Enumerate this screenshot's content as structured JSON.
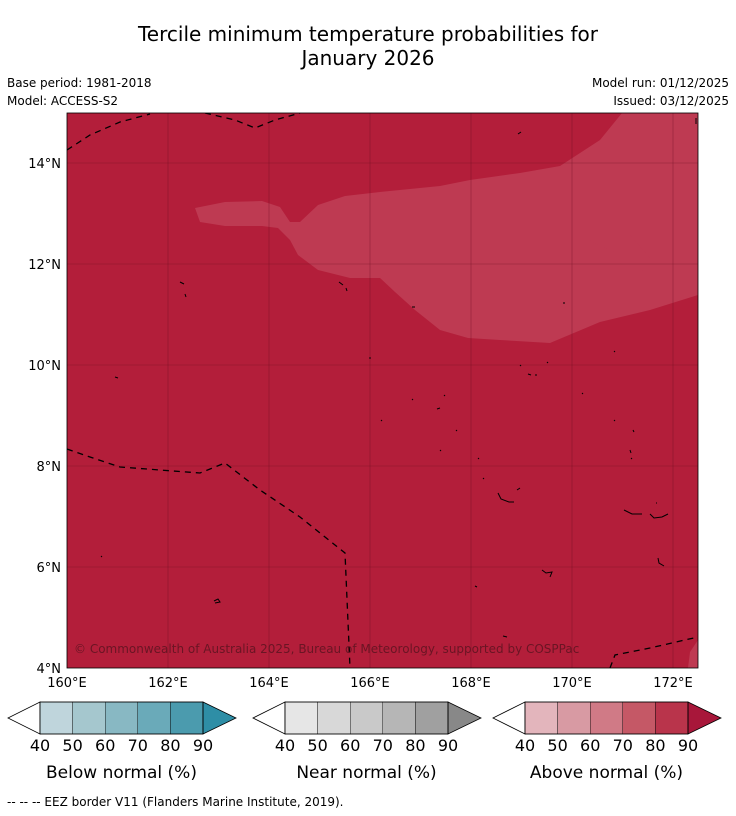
{
  "title_line1": "Tercile minimum temperature probabilities for",
  "title_line2": "January 2026",
  "base_period": "Base period: 1981-2018",
  "model": "Model: ACCESS-S2",
  "model_run": "Model run: 01/12/2025",
  "issued": "Issued: 03/12/2025",
  "map": {
    "lat_labels": [
      "14°N",
      "12°N",
      "10°N",
      "8°N",
      "6°N",
      "4°N"
    ],
    "lon_labels": [
      "160°E",
      "162°E",
      "164°E",
      "166°E",
      "168°E",
      "170°E",
      "172°E"
    ],
    "copyright": "© Commonwealth of Australia 2025, Bureau of Meteorology, supported by COSPPac",
    "colors": {
      "above_80": "#b31e3a",
      "above_90": "#be3a52"
    }
  },
  "colorbars": [
    {
      "label": "Below normal (%)",
      "ticks": [
        "40",
        "50",
        "60",
        "70",
        "80",
        "90"
      ],
      "colors": [
        "#bfd5dc",
        "#a5c7ce",
        "#88b8c3",
        "#6aaab9",
        "#4b9bae",
        "#2e8ea6"
      ]
    },
    {
      "label": "Near normal (%)",
      "ticks": [
        "40",
        "50",
        "60",
        "70",
        "80",
        "90"
      ],
      "colors": [
        "#e6e6e6",
        "#d8d8d8",
        "#c9c9c9",
        "#b6b6b6",
        "#a0a0a0",
        "#888888"
      ]
    },
    {
      "label": "Above normal (%)",
      "ticks": [
        "40",
        "50",
        "60",
        "70",
        "80",
        "90"
      ],
      "colors": [
        "#e3b5bc",
        "#d89aa3",
        "#d07a86",
        "#c55866",
        "#b9344b",
        "#a8173a"
      ]
    }
  ],
  "footnote": "--  --  -- EEZ border V11 (Flanders Marine Institute, 2019)."
}
